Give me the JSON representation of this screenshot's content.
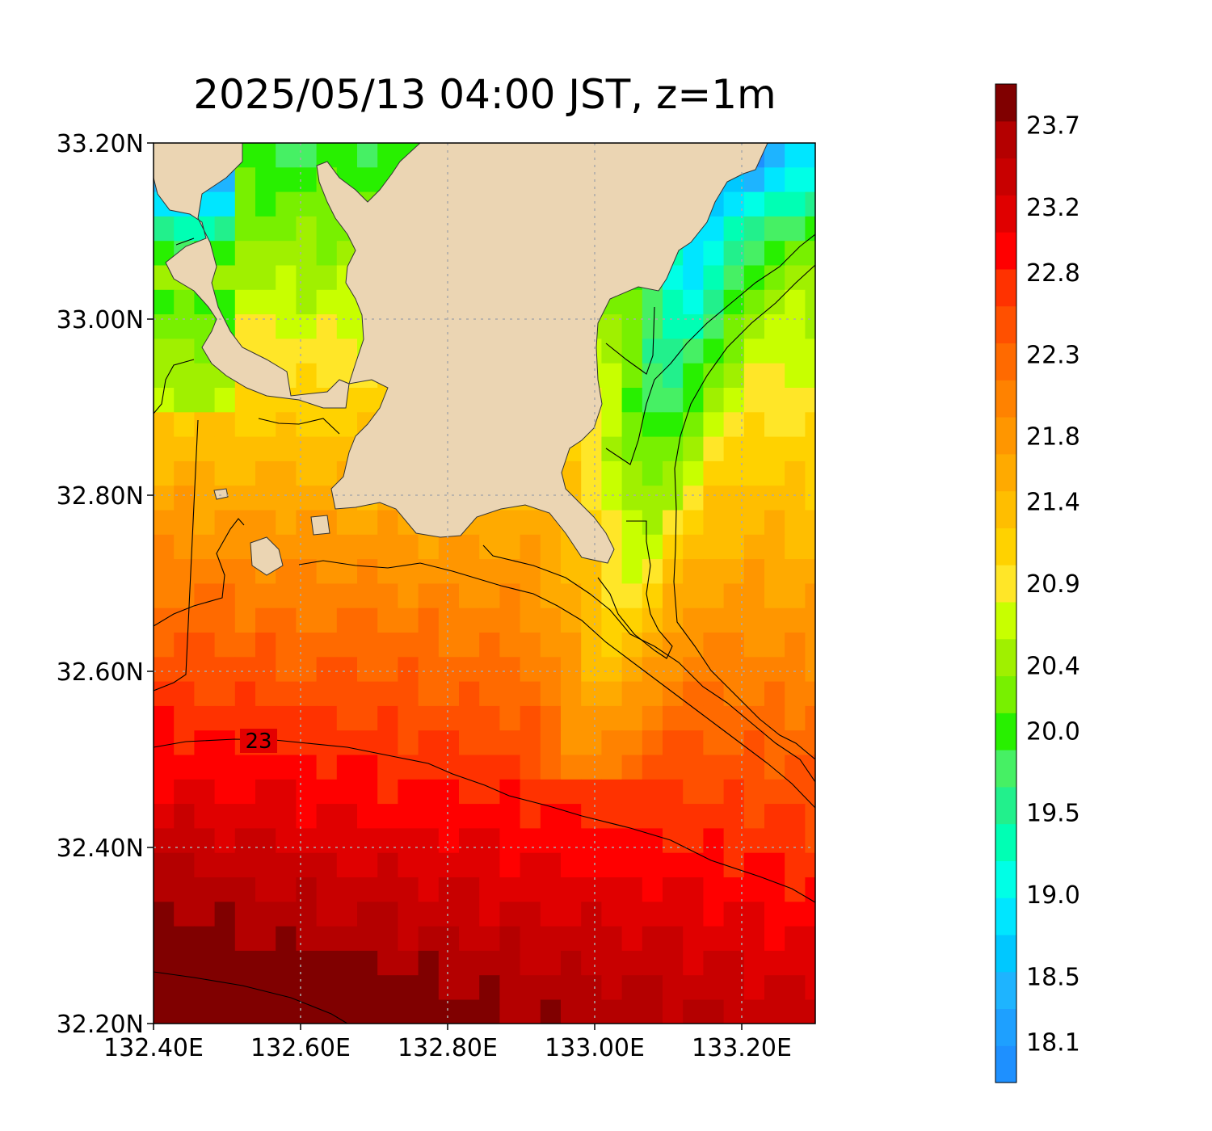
{
  "title": "2025/05/13 04:00 JST, z=1m",
  "map": {
    "lon_range": [
      132.4,
      133.3
    ],
    "lat_range": [
      32.2,
      33.2
    ],
    "x_ticks": [
      {
        "value": 132.4,
        "label": "132.40E"
      },
      {
        "value": 132.6,
        "label": "132.60E"
      },
      {
        "value": 132.8,
        "label": "132.80E"
      },
      {
        "value": 133.0,
        "label": "133.00E"
      },
      {
        "value": 133.2,
        "label": "133.20E"
      }
    ],
    "y_ticks": [
      {
        "value": 32.2,
        "label": "32.20N"
      },
      {
        "value": 32.4,
        "label": "32.40N"
      },
      {
        "value": 32.6,
        "label": "32.60N"
      },
      {
        "value": 32.8,
        "label": "32.80N"
      },
      {
        "value": 33.0,
        "label": "33.00N"
      },
      {
        "value": 33.2,
        "label": "33.20N"
      }
    ],
    "land_color": "#ebd5b3",
    "contour_label": "23",
    "grid": "dotted"
  },
  "colorbar": {
    "colors": [
      "#1e90ff",
      "#1ea0ff",
      "#1eb4ff",
      "#00c8ff",
      "#00e6ff",
      "#00ffe6",
      "#00ffb4",
      "#22f08c",
      "#46f064",
      "#28f000",
      "#78f000",
      "#a0f000",
      "#c8ff00",
      "#ffe628",
      "#ffd200",
      "#ffbe00",
      "#ffaa00",
      "#ff9600",
      "#ff8200",
      "#ff6a00",
      "#ff5000",
      "#ff3200",
      "#ff0000",
      "#e00000",
      "#c80000",
      "#b40000",
      "#800000"
    ],
    "ticks": [
      {
        "value": 18.1,
        "label": "18.1"
      },
      {
        "value": 18.5,
        "label": "18.5"
      },
      {
        "value": 19.0,
        "label": "19.0"
      },
      {
        "value": 19.5,
        "label": "19.5"
      },
      {
        "value": 20.0,
        "label": "20.0"
      },
      {
        "value": 20.4,
        "label": "20.4"
      },
      {
        "value": 20.9,
        "label": "20.9"
      },
      {
        "value": 21.4,
        "label": "21.4"
      },
      {
        "value": 21.8,
        "label": "21.8"
      },
      {
        "value": 22.3,
        "label": "22.3"
      },
      {
        "value": 22.8,
        "label": "22.8"
      },
      {
        "value": 23.2,
        "label": "23.2"
      },
      {
        "value": 23.7,
        "label": "23.7"
      }
    ]
  }
}
